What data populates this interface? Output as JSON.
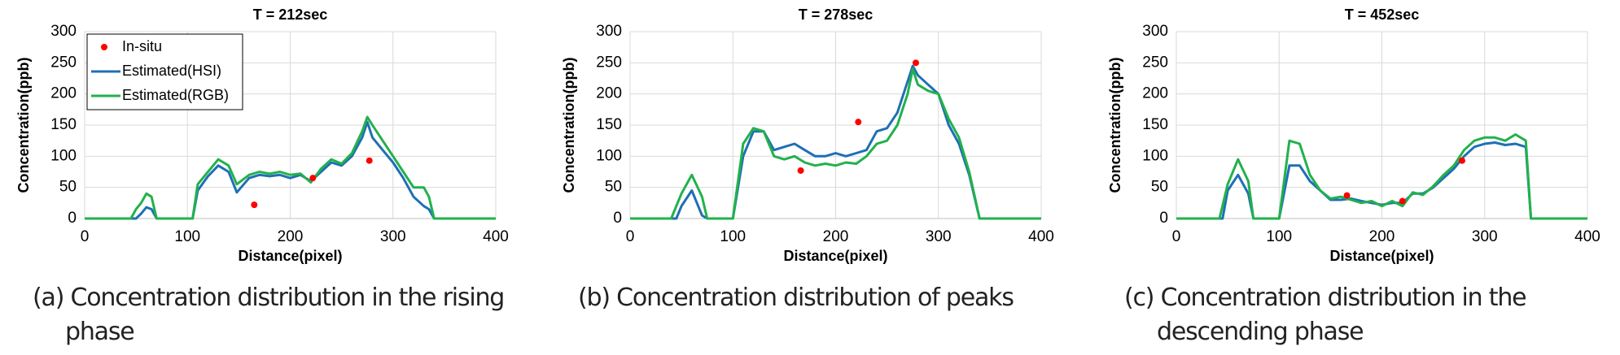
{
  "chart_data": [
    {
      "type": "line",
      "title": "T = 212sec",
      "x_label": "Distance(pixel)",
      "y_label": "Concentration(ppb)",
      "caption": "(a) Concentration distribution in the rising phase",
      "xlim": [
        0,
        400
      ],
      "ylim": [
        0,
        300
      ],
      "xticks": [
        0,
        100,
        200,
        300,
        400
      ],
      "yticks": [
        0,
        50,
        100,
        150,
        200,
        250,
        300
      ],
      "grid": true,
      "legend": "upper left",
      "series": [
        {
          "name": "In-situ",
          "type": "scatter",
          "color": "#ff0000",
          "x": [
            165,
            222,
            277
          ],
          "values": [
            22,
            65,
            93
          ]
        },
        {
          "name": "Estimated(HSI)",
          "color": "#1f6fb5",
          "x": [
            0,
            50,
            55,
            60,
            65,
            70,
            105,
            110,
            120,
            130,
            140,
            148,
            160,
            170,
            180,
            190,
            200,
            210,
            220,
            230,
            240,
            250,
            260,
            270,
            275,
            280,
            290,
            300,
            310,
            320,
            330,
            335,
            340,
            400
          ],
          "values": [
            0,
            0,
            8,
            18,
            15,
            0,
            0,
            45,
            68,
            85,
            75,
            42,
            65,
            70,
            68,
            70,
            65,
            70,
            60,
            75,
            90,
            85,
            100,
            130,
            155,
            130,
            110,
            90,
            65,
            35,
            20,
            15,
            0,
            0
          ]
        },
        {
          "name": "Estimated(RGB)",
          "color": "#22b14c",
          "x": [
            0,
            45,
            50,
            55,
            60,
            65,
            70,
            105,
            110,
            120,
            130,
            140,
            148,
            160,
            170,
            180,
            190,
            200,
            210,
            220,
            230,
            240,
            250,
            260,
            270,
            275,
            280,
            290,
            300,
            310,
            320,
            330,
            335,
            340,
            400
          ],
          "values": [
            0,
            0,
            15,
            25,
            40,
            35,
            0,
            0,
            55,
            75,
            95,
            85,
            55,
            70,
            75,
            72,
            75,
            70,
            72,
            58,
            80,
            95,
            88,
            105,
            140,
            163,
            150,
            125,
            100,
            75,
            50,
            50,
            35,
            0,
            0
          ]
        }
      ]
    },
    {
      "type": "line",
      "title": "T = 278sec",
      "x_label": "Distance(pixel)",
      "y_label": "Concentration(ppb)",
      "caption": "(b) Concentration distribution of peaks",
      "xlim": [
        0,
        400
      ],
      "ylim": [
        0,
        300
      ],
      "xticks": [
        0,
        100,
        200,
        300,
        400
      ],
      "yticks": [
        0,
        50,
        100,
        150,
        200,
        250,
        300
      ],
      "grid": true,
      "series": [
        {
          "type": "scatter",
          "color": "#ff0000",
          "x": [
            166,
            222,
            278
          ],
          "values": [
            77,
            155,
            250
          ]
        },
        {
          "color": "#1f6fb5",
          "x": [
            0,
            45,
            50,
            60,
            70,
            75,
            100,
            110,
            120,
            130,
            140,
            150,
            160,
            170,
            180,
            190,
            200,
            210,
            220,
            230,
            240,
            250,
            260,
            270,
            275,
            280,
            290,
            300,
            310,
            320,
            330,
            340,
            400
          ],
          "values": [
            0,
            0,
            20,
            45,
            5,
            0,
            0,
            100,
            140,
            140,
            110,
            115,
            120,
            110,
            100,
            100,
            105,
            100,
            105,
            110,
            140,
            145,
            170,
            220,
            245,
            230,
            215,
            200,
            150,
            120,
            70,
            0,
            0
          ]
        },
        {
          "color": "#22b14c",
          "x": [
            0,
            40,
            50,
            60,
            70,
            75,
            100,
            110,
            120,
            130,
            140,
            150,
            160,
            170,
            180,
            190,
            200,
            210,
            220,
            230,
            240,
            250,
            260,
            270,
            275,
            280,
            290,
            300,
            310,
            320,
            330,
            340,
            400
          ],
          "values": [
            0,
            0,
            40,
            70,
            35,
            0,
            0,
            120,
            145,
            140,
            100,
            95,
            100,
            90,
            85,
            88,
            85,
            90,
            88,
            100,
            120,
            125,
            150,
            200,
            240,
            215,
            205,
            200,
            160,
            130,
            75,
            0,
            0
          ]
        }
      ]
    },
    {
      "type": "line",
      "title": "T = 452sec",
      "x_label": "Distance(pixel)",
      "y_label": "Concentration(ppb)",
      "caption": "(c) Concentration distribution in the descending phase",
      "xlim": [
        0,
        400
      ],
      "ylim": [
        0,
        300
      ],
      "xticks": [
        0,
        100,
        200,
        300,
        400
      ],
      "yticks": [
        0,
        50,
        100,
        150,
        200,
        250,
        300
      ],
      "grid": true,
      "series": [
        {
          "type": "scatter",
          "color": "#ff0000",
          "x": [
            166,
            220,
            278
          ],
          "values": [
            37,
            28,
            93
          ]
        },
        {
          "color": "#1f6fb5",
          "x": [
            0,
            45,
            50,
            60,
            70,
            75,
            100,
            110,
            120,
            130,
            140,
            150,
            160,
            170,
            180,
            190,
            200,
            210,
            220,
            230,
            240,
            250,
            260,
            270,
            280,
            290,
            300,
            310,
            320,
            330,
            340,
            345,
            400
          ],
          "values": [
            0,
            0,
            45,
            70,
            40,
            0,
            0,
            85,
            85,
            60,
            45,
            30,
            30,
            32,
            28,
            25,
            22,
            25,
            25,
            40,
            40,
            50,
            65,
            80,
            100,
            115,
            120,
            122,
            118,
            120,
            115,
            0,
            0
          ]
        },
        {
          "color": "#22b14c",
          "x": [
            0,
            42,
            50,
            60,
            70,
            75,
            100,
            110,
            120,
            130,
            140,
            150,
            160,
            170,
            180,
            190,
            200,
            210,
            220,
            230,
            240,
            250,
            260,
            270,
            280,
            290,
            300,
            310,
            320,
            330,
            340,
            345,
            400
          ],
          "values": [
            0,
            0,
            55,
            95,
            60,
            0,
            0,
            125,
            120,
            70,
            45,
            32,
            35,
            30,
            25,
            28,
            20,
            28,
            20,
            42,
            38,
            52,
            70,
            85,
            110,
            125,
            130,
            130,
            125,
            135,
            125,
            0,
            0
          ]
        }
      ]
    }
  ]
}
